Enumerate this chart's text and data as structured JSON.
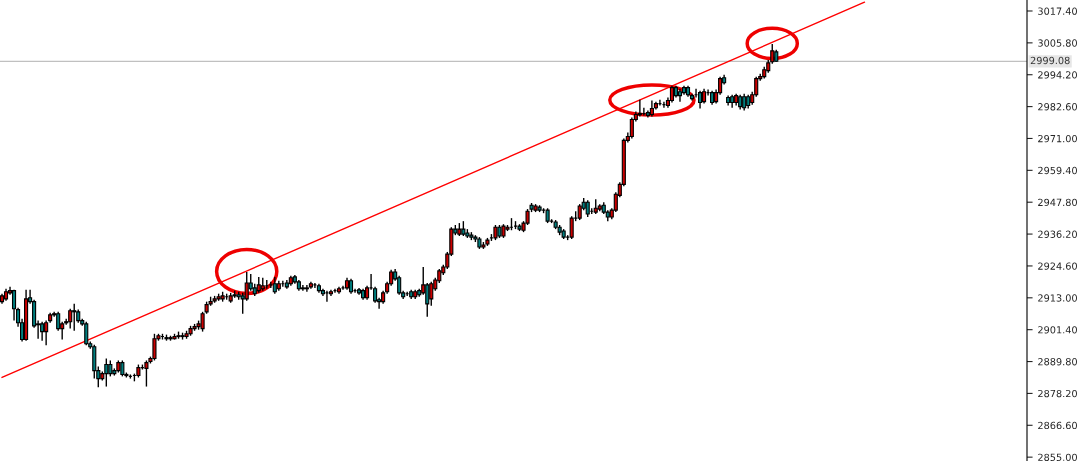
{
  "chart_data": {
    "type": "candlestick",
    "categories": [
      null,
      null,
      null,
      null,
      null,
      null,
      null,
      null,
      null,
      null,
      null,
      null,
      null,
      null,
      null,
      null,
      null,
      null,
      null,
      null,
      null,
      null,
      null,
      null,
      null,
      null,
      null,
      null,
      null,
      null,
      null,
      null,
      null,
      null,
      null,
      null,
      null,
      null,
      null,
      null,
      null,
      null,
      null,
      null,
      null,
      null,
      null,
      null,
      null,
      null,
      null,
      null,
      null,
      null,
      null,
      null,
      null,
      null,
      null,
      null,
      null,
      null,
      null,
      null,
      null,
      null,
      null,
      null,
      null,
      null,
      null,
      null,
      null,
      null,
      null,
      null,
      null,
      null,
      null,
      null,
      null,
      null,
      null,
      null,
      null,
      null,
      null,
      null,
      null,
      null,
      null,
      null,
      null,
      null,
      null,
      null,
      null,
      null,
      null,
      null,
      null,
      null,
      null,
      null,
      null,
      null,
      null,
      null,
      null,
      null,
      null,
      null,
      null,
      null,
      null,
      null,
      null,
      null,
      null,
      null,
      null,
      null,
      null,
      null,
      null,
      null,
      null,
      null,
      null,
      null,
      null,
      null,
      null,
      null,
      null,
      null,
      null,
      null,
      null,
      null,
      null,
      null,
      null,
      null,
      null,
      null,
      null,
      null,
      null,
      null,
      null,
      null,
      null,
      null,
      null,
      null,
      null,
      null,
      null,
      null,
      null,
      null,
      null,
      null,
      null,
      null,
      null,
      null,
      null,
      null,
      null,
      null,
      null,
      null,
      null,
      null,
      null,
      null,
      null,
      null,
      null,
      null,
      null,
      null,
      null,
      null,
      null,
      null,
      null,
      null,
      null,
      null,
      null,
      null,
      null,
      null,
      null,
      null,
      null,
      null,
      null,
      null,
      null,
      null,
      null,
      null,
      null,
      null,
      null,
      null,
      null,
      null,
      null,
      null,
      null,
      null,
      null,
      null,
      null,
      null,
      null,
      null,
      null,
      null,
      null,
      null,
      null,
      null,
      null,
      null,
      null,
      null,
      null,
      null,
      null,
      null,
      null,
      null,
      null,
      null,
      null,
      null,
      null,
      null,
      null,
      null,
      null,
      null,
      null,
      null,
      null,
      null,
      null,
      null,
      null,
      null
    ],
    "ohlc": [
      [
        2911.6,
        2914.5,
        2910.8,
        2913.7
      ],
      [
        2912.6,
        2916.3,
        2911.9,
        2915.2
      ],
      [
        2914.8,
        2917.0,
        2914.1,
        2915.6
      ],
      [
        2915.6,
        2915.9,
        2904.7,
        2909.0
      ],
      [
        2908.7,
        2909.4,
        2902.5,
        2903.9
      ],
      [
        2903.9,
        2905.4,
        2897.1,
        2897.8
      ],
      [
        2897.8,
        2915.9,
        2897.4,
        2912.6
      ],
      [
        2913.0,
        2915.9,
        2910.8,
        2911.6
      ],
      [
        2911.6,
        2912.3,
        2902.1,
        2902.8
      ],
      [
        2903.5,
        2904.7,
        2898.1,
        2903.2
      ],
      [
        2903.5,
        2904.3,
        2897.4,
        2900.7
      ],
      [
        2900.7,
        2904.7,
        2895.7,
        2903.9
      ],
      [
        2904.7,
        2907.6,
        2903.9,
        2906.8
      ],
      [
        2906.8,
        2907.9,
        2906.1,
        2907.2
      ],
      [
        2907.2,
        2907.9,
        2901.0,
        2901.8
      ],
      [
        2901.8,
        2904.3,
        2897.8,
        2903.5
      ],
      [
        2903.9,
        2905.4,
        2903.2,
        2904.3
      ],
      [
        2904.3,
        2909.0,
        2901.8,
        2908.3
      ],
      [
        2908.3,
        2910.8,
        2901.0,
        2907.9
      ],
      [
        2907.9,
        2908.7,
        2903.9,
        2904.7
      ],
      [
        2904.7,
        2905.4,
        2902.8,
        2903.5
      ],
      [
        2903.5,
        2904.3,
        2895.7,
        2896.3
      ],
      [
        2896.3,
        2897.1,
        2894.5,
        2895.2
      ],
      [
        2895.2,
        2895.9,
        2883.6,
        2886.5
      ],
      [
        2886.5,
        2888.0,
        2880.4,
        2883.6
      ],
      [
        2883.6,
        2886.2,
        2882.9,
        2885.4
      ],
      [
        2888.7,
        2890.9,
        2880.7,
        2885.4
      ],
      [
        2888.7,
        2890.2,
        2884.4,
        2885.4
      ],
      [
        2886.5,
        2887.3,
        2884.7,
        2885.4
      ],
      [
        2886.5,
        2890.2,
        2885.8,
        2889.4
      ],
      [
        2889.4,
        2890.2,
        2884.4,
        2885.1
      ],
      [
        2885.1,
        2885.8,
        2884.0,
        2884.7
      ],
      [
        2884.4,
        2885.1,
        2883.6,
        2884.4
      ],
      [
        2884.7,
        2885.4,
        2882.6,
        2884.7
      ],
      [
        2884.7,
        2888.7,
        2884.0,
        2887.6
      ],
      [
        2887.6,
        2888.7,
        2886.9,
        2887.6
      ],
      [
        2887.3,
        2890.2,
        2880.7,
        2889.4
      ],
      [
        2889.8,
        2891.6,
        2889.1,
        2890.9
      ],
      [
        2890.9,
        2899.9,
        2890.2,
        2898.1
      ],
      [
        2898.1,
        2899.9,
        2897.4,
        2899.2
      ],
      [
        2898.9,
        2899.9,
        2897.8,
        2898.9
      ],
      [
        2898.5,
        2899.6,
        2897.4,
        2898.1
      ],
      [
        2898.1,
        2899.2,
        2897.4,
        2898.5
      ],
      [
        2898.1,
        2899.9,
        2897.8,
        2898.9
      ],
      [
        2898.9,
        2900.7,
        2898.1,
        2899.2
      ],
      [
        2899.2,
        2900.3,
        2897.8,
        2898.9
      ],
      [
        2898.9,
        2901.0,
        2898.1,
        2899.9
      ],
      [
        2899.9,
        2902.8,
        2899.2,
        2901.8
      ],
      [
        2901.8,
        2903.5,
        2901.0,
        2902.5
      ],
      [
        2902.5,
        2904.7,
        2901.4,
        2903.5
      ],
      [
        2901.8,
        2907.9,
        2900.7,
        2907.2
      ],
      [
        2907.9,
        2911.6,
        2907.2,
        2910.5
      ],
      [
        2910.8,
        2913.4,
        2910.1,
        2911.6
      ],
      [
        2911.9,
        2913.7,
        2911.2,
        2912.6
      ],
      [
        2912.6,
        2914.5,
        2911.9,
        2913.4
      ],
      [
        2912.6,
        2915.2,
        2911.6,
        2913.7
      ],
      [
        2913.4,
        2914.5,
        2912.3,
        2913.4
      ],
      [
        2911.9,
        2914.8,
        2911.2,
        2913.7
      ],
      [
        2913.7,
        2915.6,
        2913.0,
        2914.1
      ],
      [
        2914.1,
        2915.2,
        2912.3,
        2913.4
      ],
      [
        2913.7,
        2914.8,
        2907.2,
        2912.6
      ],
      [
        2912.6,
        2922.4,
        2911.9,
        2918.4
      ],
      [
        2918.4,
        2921.7,
        2915.6,
        2916.3
      ],
      [
        2916.6,
        2918.1,
        2913.7,
        2914.5
      ],
      [
        2915.6,
        2920.6,
        2914.8,
        2917.7
      ],
      [
        2916.3,
        2920.3,
        2915.6,
        2917.4
      ],
      [
        2917.4,
        2919.5,
        2916.3,
        2917.4
      ],
      [
        2917.7,
        2918.8,
        2916.6,
        2917.7
      ],
      [
        2918.1,
        2920.6,
        2914.5,
        2915.2
      ],
      [
        2916.3,
        2919.2,
        2915.6,
        2918.1
      ],
      [
        2918.1,
        2919.2,
        2917.0,
        2918.1
      ],
      [
        2918.4,
        2919.5,
        2916.3,
        2917.0
      ],
      [
        2918.1,
        2921.0,
        2917.4,
        2920.3
      ],
      [
        2920.6,
        2921.3,
        2918.1,
        2918.8
      ],
      [
        2918.8,
        2919.5,
        2915.6,
        2916.3
      ],
      [
        2916.6,
        2917.7,
        2915.6,
        2916.3
      ],
      [
        2916.3,
        2917.7,
        2915.2,
        2916.6
      ],
      [
        2917.0,
        2918.8,
        2916.3,
        2918.1
      ],
      [
        2917.7,
        2918.4,
        2916.6,
        2917.7
      ],
      [
        2917.4,
        2918.1,
        2914.8,
        2915.6
      ],
      [
        2915.6,
        2916.3,
        2913.7,
        2914.5
      ],
      [
        2914.8,
        2915.6,
        2911.6,
        2914.8
      ],
      [
        2914.5,
        2915.9,
        2913.7,
        2915.2
      ],
      [
        2915.6,
        2916.3,
        2914.8,
        2915.6
      ],
      [
        2915.2,
        2917.0,
        2914.5,
        2916.3
      ],
      [
        2916.6,
        2917.4,
        2915.9,
        2916.6
      ],
      [
        2916.6,
        2920.3,
        2915.9,
        2919.2
      ],
      [
        2919.2,
        2919.9,
        2914.5,
        2915.2
      ],
      [
        2915.6,
        2916.3,
        2914.8,
        2915.6
      ],
      [
        2915.9,
        2916.6,
        2914.1,
        2914.8
      ],
      [
        2915.6,
        2916.3,
        2912.3,
        2913.0
      ],
      [
        2913.0,
        2917.4,
        2912.3,
        2916.6
      ],
      [
        2916.6,
        2921.7,
        2915.9,
        2916.6
      ],
      [
        2916.3,
        2917.0,
        2911.2,
        2911.9
      ],
      [
        2912.3,
        2913.0,
        2909.0,
        2911.6
      ],
      [
        2911.6,
        2915.6,
        2910.8,
        2914.8
      ],
      [
        2915.2,
        2918.8,
        2914.5,
        2918.1
      ],
      [
        2918.1,
        2923.2,
        2917.4,
        2922.4
      ],
      [
        2922.4,
        2923.5,
        2919.2,
        2919.9
      ],
      [
        2920.3,
        2921.0,
        2914.1,
        2914.8
      ],
      [
        2914.8,
        2915.6,
        2912.6,
        2913.4
      ],
      [
        2914.5,
        2915.2,
        2913.7,
        2914.5
      ],
      [
        2915.2,
        2915.9,
        2912.6,
        2913.4
      ],
      [
        2913.4,
        2915.9,
        2912.6,
        2915.2
      ],
      [
        2915.6,
        2916.3,
        2913.4,
        2914.1
      ],
      [
        2914.8,
        2924.2,
        2914.1,
        2917.7
      ],
      [
        2917.7,
        2918.4,
        2906.1,
        2910.8
      ],
      [
        2912.6,
        2918.8,
        2910.1,
        2918.1
      ],
      [
        2916.3,
        2920.3,
        2915.6,
        2919.5
      ],
      [
        2919.2,
        2923.5,
        2918.4,
        2922.8
      ],
      [
        2922.1,
        2925.0,
        2921.3,
        2924.2
      ],
      [
        2924.2,
        2929.7,
        2923.5,
        2928.9
      ],
      [
        2928.9,
        2938.7,
        2928.2,
        2938.0
      ],
      [
        2938.0,
        2939.5,
        2935.8,
        2936.6
      ],
      [
        2936.2,
        2940.2,
        2935.5,
        2938.0
      ],
      [
        2938.0,
        2940.9,
        2935.5,
        2936.2
      ],
      [
        2936.6,
        2938.0,
        2934.8,
        2935.5
      ],
      [
        2935.8,
        2936.9,
        2934.0,
        2935.1
      ],
      [
        2935.1,
        2935.8,
        2933.3,
        2934.4
      ],
      [
        2934.4,
        2935.1,
        2930.8,
        2931.5
      ],
      [
        2931.5,
        2933.3,
        2930.8,
        2932.2
      ],
      [
        2932.6,
        2934.8,
        2931.9,
        2934.0
      ],
      [
        2934.8,
        2936.2,
        2933.7,
        2934.8
      ],
      [
        2934.8,
        2939.5,
        2934.0,
        2938.7
      ],
      [
        2938.7,
        2939.5,
        2934.8,
        2935.5
      ],
      [
        2935.5,
        2939.8,
        2934.8,
        2939.1
      ],
      [
        2938.0,
        2939.5,
        2937.3,
        2938.7
      ],
      [
        2938.7,
        2942.0,
        2937.6,
        2938.7
      ],
      [
        2939.1,
        2940.9,
        2938.0,
        2939.1
      ],
      [
        2939.1,
        2939.8,
        2937.3,
        2938.0
      ],
      [
        2937.6,
        2940.9,
        2936.9,
        2940.2
      ],
      [
        2940.2,
        2945.3,
        2939.5,
        2944.5
      ],
      [
        2946.7,
        2947.5,
        2944.2,
        2945.3
      ],
      [
        2944.9,
        2947.1,
        2944.2,
        2946.4
      ],
      [
        2946.0,
        2946.7,
        2944.2,
        2944.9
      ],
      [
        2944.9,
        2945.6,
        2943.8,
        2944.9
      ],
      [
        2944.9,
        2945.6,
        2940.2,
        2940.9
      ],
      [
        2940.9,
        2941.6,
        2940.2,
        2940.9
      ],
      [
        2940.6,
        2941.3,
        2938.0,
        2938.7
      ],
      [
        2938.7,
        2939.5,
        2935.8,
        2936.9
      ],
      [
        2937.3,
        2938.0,
        2934.4,
        2935.1
      ],
      [
        2935.1,
        2935.8,
        2934.0,
        2935.1
      ],
      [
        2935.1,
        2942.7,
        2934.4,
        2942.0
      ],
      [
        2942.0,
        2944.5,
        2940.9,
        2942.0
      ],
      [
        2942.0,
        2947.1,
        2941.3,
        2946.4
      ],
      [
        2947.8,
        2949.3,
        2944.9,
        2945.6
      ],
      [
        2947.8,
        2948.5,
        2942.4,
        2943.5
      ],
      [
        2944.5,
        2945.6,
        2943.5,
        2944.5
      ],
      [
        2944.2,
        2948.9,
        2943.5,
        2945.6
      ],
      [
        2945.3,
        2947.1,
        2944.5,
        2946.4
      ],
      [
        2946.7,
        2947.8,
        2943.5,
        2944.2
      ],
      [
        2944.2,
        2944.9,
        2940.9,
        2942.4
      ],
      [
        2942.4,
        2945.6,
        2941.6,
        2944.9
      ],
      [
        2944.9,
        2951.4,
        2944.2,
        2950.7
      ],
      [
        2950.3,
        2955.1,
        2949.6,
        2954.3
      ],
      [
        2954.3,
        2971.0,
        2953.6,
        2970.3
      ],
      [
        2970.3,
        2973.2,
        2969.5,
        2971.7
      ],
      [
        2971.7,
        2978.6,
        2971.0,
        2977.9
      ],
      [
        2977.9,
        2980.8,
        2977.2,
        2979.7
      ],
      [
        2980.1,
        2985.1,
        2979.0,
        2979.7
      ],
      [
        2980.1,
        2982.2,
        2979.4,
        2980.1
      ],
      [
        2980.4,
        2981.2,
        2978.6,
        2979.4
      ],
      [
        2979.7,
        2984.8,
        2979.0,
        2981.9
      ],
      [
        2982.2,
        2984.4,
        2981.5,
        2983.7
      ],
      [
        2983.7,
        2985.1,
        2983.0,
        2983.7
      ],
      [
        2983.3,
        2984.4,
        2982.2,
        2983.3
      ],
      [
        2983.0,
        2985.9,
        2982.2,
        2984.8
      ],
      [
        2984.8,
        2990.2,
        2984.1,
        2989.5
      ],
      [
        2989.5,
        2990.2,
        2985.9,
        2986.6
      ],
      [
        2988.0,
        2989.1,
        2984.4,
        2986.6
      ],
      [
        2989.5,
        2990.2,
        2986.9,
        2987.7
      ],
      [
        2989.5,
        2990.2,
        2986.2,
        2986.9
      ],
      [
        2986.6,
        2987.3,
        2984.8,
        2985.5
      ],
      [
        2986.9,
        2989.1,
        2985.9,
        2986.9
      ],
      [
        2987.7,
        2988.4,
        2981.9,
        2984.1
      ],
      [
        2984.4,
        2989.1,
        2983.7,
        2988.0
      ],
      [
        2987.7,
        2988.8,
        2986.6,
        2987.7
      ],
      [
        2987.7,
        2988.4,
        2983.3,
        2984.1
      ],
      [
        2984.4,
        2988.8,
        2983.7,
        2987.7
      ],
      [
        2987.7,
        2993.5,
        2986.9,
        2992.8
      ],
      [
        2993.1,
        2994.2,
        2990.6,
        2991.3
      ],
      [
        2985.9,
        2986.6,
        2983.0,
        2984.1
      ],
      [
        2986.2,
        2986.9,
        2982.2,
        2984.1
      ],
      [
        2984.1,
        2987.3,
        2983.0,
        2986.6
      ],
      [
        2986.2,
        2986.9,
        2981.5,
        2982.6
      ],
      [
        2986.2,
        2987.3,
        2981.2,
        2982.2
      ],
      [
        2986.2,
        2986.9,
        2981.9,
        2983.0
      ],
      [
        2984.1,
        2988.0,
        2983.3,
        2986.9
      ],
      [
        2986.9,
        2993.5,
        2986.2,
        2992.8
      ],
      [
        2992.8,
        2994.6,
        2992.0,
        2993.5
      ],
      [
        2993.5,
        2997.1,
        2992.8,
        2996.0
      ],
      [
        2995.7,
        2999.6,
        2994.9,
        2998.5
      ],
      [
        2998.9,
        3005.4,
        2998.2,
        3002.9
      ],
      [
        3002.5,
        3003.3,
        2998.9,
        2999.1
      ],
      null,
      null,
      null,
      null,
      null,
      null,
      null,
      null,
      null,
      null,
      null,
      null,
      null,
      null,
      null,
      null,
      null,
      null,
      null,
      null,
      null,
      null,
      null,
      null,
      null,
      null,
      null,
      null,
      null,
      null,
      null,
      null,
      null,
      null,
      null,
      null,
      null,
      null,
      null,
      null,
      null,
      null,
      null,
      null,
      null,
      null,
      null,
      null,
      null,
      null,
      null,
      null,
      null,
      null,
      null,
      null,
      null,
      null,
      null,
      null,
      null,
      null
    ],
    "colors": [
      "#cc0000",
      "#cc0000",
      "#cc0000",
      "#007f7f",
      "#007f7f",
      "#007f7f",
      "#cc0000",
      "#007f7f",
      "#007f7f",
      "#007f7f",
      "#007f7f",
      "#cc0000",
      "#cc0000",
      "#cc0000",
      "#007f7f",
      "#cc0000",
      "#cc0000",
      "#cc0000",
      "#007f7f",
      "#007f7f",
      "#007f7f",
      "#007f7f",
      "#007f7f",
      "#007f7f",
      "#007f7f",
      "#cc0000",
      "#007f7f",
      "#007f7f",
      "#007f7f",
      "#cc0000",
      "#007f7f",
      "#007f7f",
      "#000000",
      "#000000",
      "#cc0000",
      "#000000",
      "#cc0000",
      "#cc0000",
      "#cc0000",
      "#cc0000",
      "#000000",
      "#007f7f",
      "#cc0000",
      "#cc0000",
      "#cc0000",
      "#007f7f",
      "#cc0000",
      "#cc0000",
      "#cc0000",
      "#cc0000",
      "#cc0000",
      "#cc0000",
      "#cc0000",
      "#cc0000",
      "#cc0000",
      "#cc0000",
      "#000000",
      "#cc0000",
      "#cc0000",
      "#007f7f",
      "#007f7f",
      "#cc0000",
      "#007f7f",
      "#007f7f",
      "#cc0000",
      "#cc0000",
      "#000000",
      "#000000",
      "#007f7f",
      "#cc0000",
      "#000000",
      "#007f7f",
      "#cc0000",
      "#007f7f",
      "#007f7f",
      "#007f7f",
      "#cc0000",
      "#cc0000",
      "#000000",
      "#007f7f",
      "#007f7f",
      "#000000",
      "#cc0000",
      "#000000",
      "#cc0000",
      "#000000",
      "#cc0000",
      "#007f7f",
      "#000000",
      "#007f7f",
      "#007f7f",
      "#cc0000",
      "#000000",
      "#007f7f",
      "#007f7f",
      "#cc0000",
      "#cc0000",
      "#cc0000",
      "#007f7f",
      "#007f7f",
      "#007f7f",
      "#000000",
      "#007f7f",
      "#cc0000",
      "#007f7f",
      "#cc0000",
      "#007f7f",
      "#cc0000",
      "#cc0000",
      "#cc0000",
      "#cc0000",
      "#cc0000",
      "#cc0000",
      "#007f7f",
      "#cc0000",
      "#007f7f",
      "#007f7f",
      "#007f7f",
      "#007f7f",
      "#007f7f",
      "#cc0000",
      "#cc0000",
      "#000000",
      "#cc0000",
      "#007f7f",
      "#cc0000",
      "#cc0000",
      "#000000",
      "#000000",
      "#007f7f",
      "#cc0000",
      "#cc0000",
      "#007f7f",
      "#cc0000",
      "#007f7f",
      "#000000",
      "#007f7f",
      "#000000",
      "#007f7f",
      "#007f7f",
      "#007f7f",
      "#000000",
      "#cc0000",
      "#000000",
      "#cc0000",
      "#007f7f",
      "#007f7f",
      "#000000",
      "#cc0000",
      "#cc0000",
      "#007f7f",
      "#007f7f",
      "#cc0000",
      "#cc0000",
      "#cc0000",
      "#cc0000",
      "#cc0000",
      "#cc0000",
      "#cc0000",
      "#007f7f",
      "#000000",
      "#007f7f",
      "#cc0000",
      "#cc0000",
      "#000000",
      "#000000",
      "#cc0000",
      "#cc0000",
      "#007f7f",
      "#007f7f",
      "#007f7f",
      "#007f7f",
      "#007f7f",
      "#000000",
      "#007f7f",
      "#cc0000",
      "#000000",
      "#007f7f",
      "#cc0000",
      "#cc0000",
      "#007f7f",
      "#007f7f",
      "#007f7f",
      "#cc0000",
      "#007f7f",
      "#007f7f",
      "#007f7f",
      "#cc0000",
      "#cc0000",
      "#cc0000",
      "#cc0000",
      "#cc0000",
      "#cc0000",
      "#007f7f",
      null,
      null,
      null,
      null,
      null,
      null,
      null,
      null,
      null,
      null,
      null,
      null,
      null,
      null,
      null,
      null,
      null,
      null,
      null,
      null,
      null,
      null,
      null,
      null,
      null,
      null,
      null,
      null,
      null,
      null,
      null,
      null,
      null,
      null,
      null,
      null,
      null,
      null,
      null,
      null,
      null,
      null,
      null,
      null,
      null,
      null,
      null,
      null,
      null,
      null,
      null,
      null,
      null,
      null,
      null,
      null,
      null,
      null,
      null,
      null,
      null,
      null
    ],
    "series": [
      {
        "type": "line",
        "color": "#ff0000",
        "values": [
          2884.0,
          null,
          null,
          null,
          null,
          null,
          null,
          null,
          null,
          null,
          null,
          null,
          null,
          null,
          null,
          null,
          null,
          null,
          null,
          null,
          null,
          null,
          null,
          null,
          null,
          null,
          null,
          null,
          null,
          null,
          null,
          null,
          null,
          null,
          null,
          null,
          null,
          null,
          null,
          null,
          null,
          null,
          null,
          null,
          null,
          null,
          null,
          null,
          null,
          null,
          null,
          null,
          null,
          null,
          null,
          null,
          null,
          null,
          null,
          null,
          null,
          null,
          null,
          null,
          null,
          null,
          null,
          null,
          null,
          null,
          null,
          null,
          null,
          null,
          null,
          null,
          null,
          null,
          null,
          null,
          null,
          null,
          null,
          null,
          null,
          null,
          null,
          null,
          null,
          null,
          null,
          null,
          null,
          null,
          null,
          null,
          null,
          null,
          null,
          null,
          null,
          null,
          null,
          null,
          null,
          null,
          null,
          null,
          null,
          null,
          null,
          null,
          null,
          null,
          null,
          null,
          null,
          null,
          null,
          null,
          null,
          null,
          null,
          null,
          null,
          null,
          null,
          null,
          null,
          null,
          null,
          null,
          null,
          null,
          null,
          null,
          null,
          null,
          null,
          null,
          null,
          null,
          null,
          null,
          null,
          null,
          null,
          null,
          null,
          null,
          null,
          null,
          null,
          null,
          null,
          null,
          null,
          null,
          null,
          null,
          null,
          null,
          null,
          null,
          null,
          null,
          null,
          null,
          null,
          null,
          null,
          null,
          null,
          null,
          null,
          null,
          null,
          null,
          null,
          null,
          null,
          null,
          null,
          null,
          null,
          null,
          null,
          null,
          null,
          null,
          null,
          null,
          null,
          null,
          null,
          null,
          null,
          null,
          null,
          null,
          null,
          null,
          null,
          null,
          null,
          null,
          null,
          null,
          null,
          null,
          null,
          null,
          null,
          null,
          null,
          3020.6,
          null,
          null,
          null,
          null,
          null,
          null,
          null,
          null,
          null,
          null,
          null,
          null,
          null,
          null,
          null,
          null,
          null,
          null,
          null,
          null,
          null,
          null,
          null,
          null,
          null,
          null,
          null,
          null,
          null,
          null,
          null,
          null,
          null,
          null,
          null,
          null,
          null,
          null,
          null,
          null
        ]
      }
    ],
    "ref_lines": [
      {
        "axis": "y",
        "value": 2999.08,
        "label": "2999.08",
        "color": "#c0c0c0"
      }
    ],
    "ylim": [
      2853.6,
      3021.4
    ],
    "yticks": [
      {
        "value": 3017.4,
        "label": "3017.40"
      },
      {
        "value": 3005.8,
        "label": "3005.80"
      },
      {
        "value": 2994.2,
        "label": "2994.20"
      },
      {
        "value": 2982.6,
        "label": "2982.60"
      },
      {
        "value": 2971.0,
        "label": "2971.00"
      },
      {
        "value": 2959.4,
        "label": "2959.40"
      },
      {
        "value": 2947.8,
        "label": "2947.80"
      },
      {
        "value": 2936.2,
        "label": "2936.20"
      },
      {
        "value": 2924.6,
        "label": "2924.60"
      },
      {
        "value": 2913.0,
        "label": "2913.00"
      },
      {
        "value": 2901.4,
        "label": "2901.40"
      },
      {
        "value": 2889.8,
        "label": "2889.80"
      },
      {
        "value": 2878.2,
        "label": "2878.20"
      },
      {
        "value": 2866.6,
        "label": "2866.60"
      },
      {
        "value": 2855.0,
        "label": "2855.00"
      }
    ],
    "tick_labels": "y",
    "grid": false,
    "legend": false
  }
}
